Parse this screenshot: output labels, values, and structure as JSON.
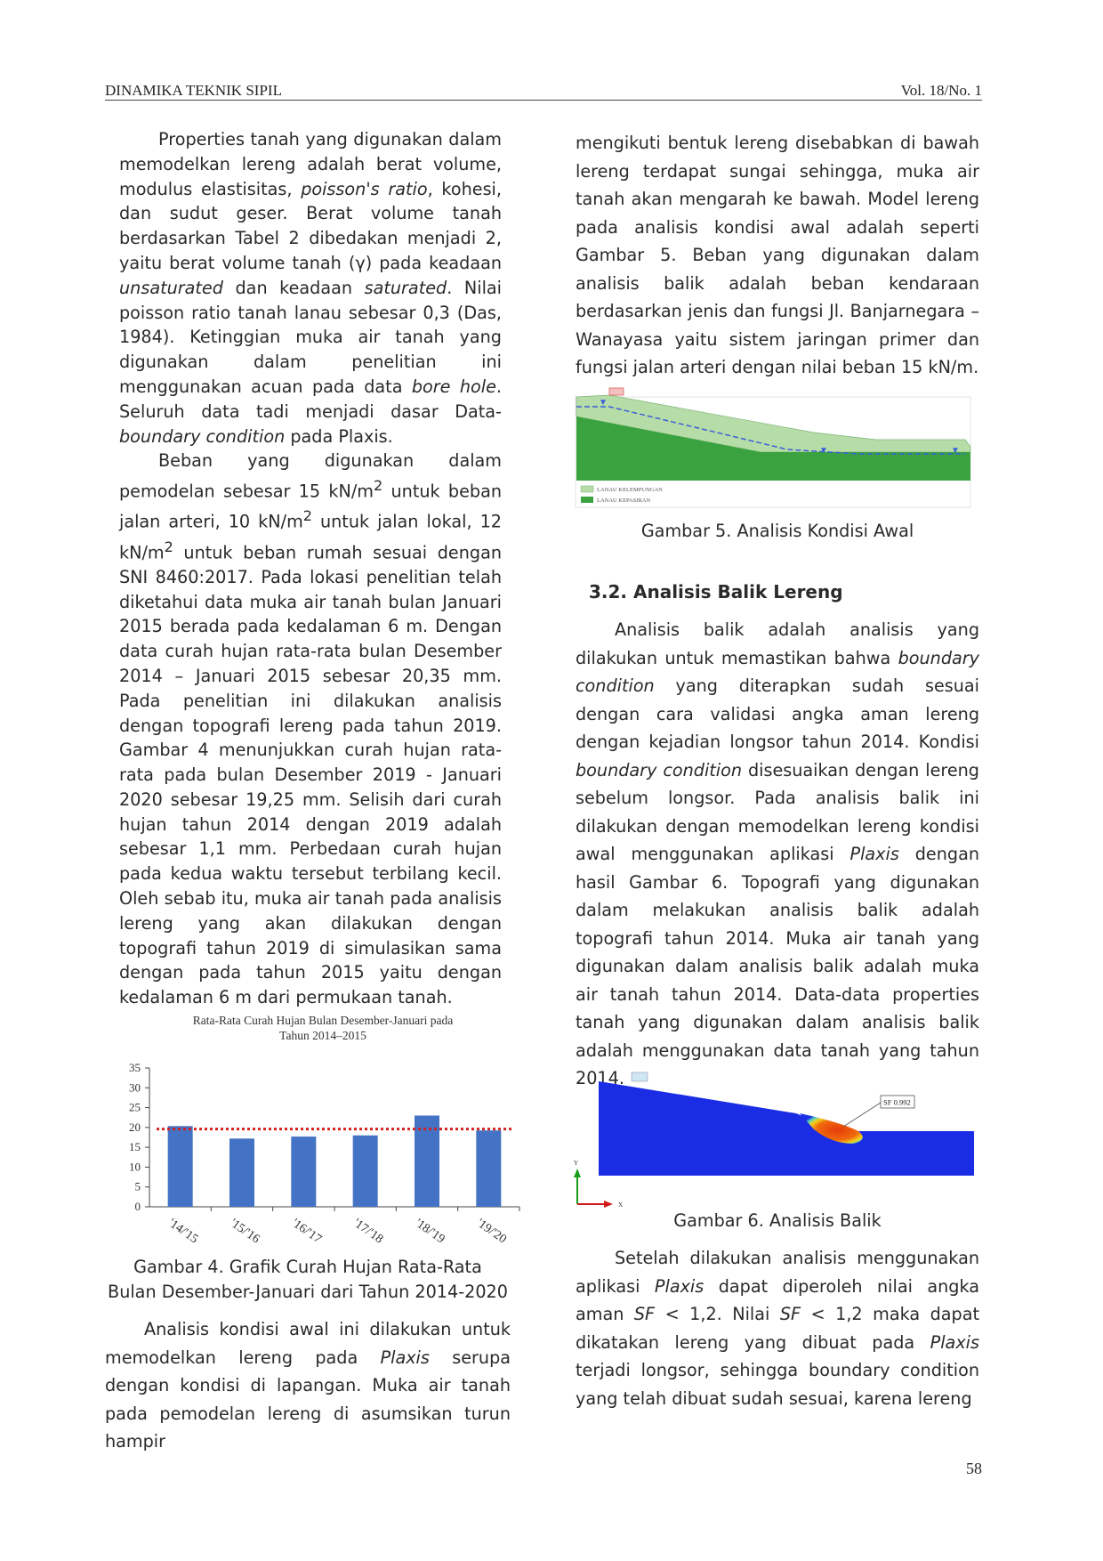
{
  "header": {
    "journal": "DINAMIKA TEKNIK SIPIL",
    "volume": "Vol. 18/No. 1"
  },
  "left_column": {
    "p1": [
      "Properties tanah yang digunakan dalam memodelkan lereng adalah berat volume, modulus elastisitas, ",
      "poisson's ratio",
      ", kohesi, dan sudut geser. Berat volume tanah berdasarkan Tabel 2 dibedakan menjadi 2, yaitu berat volume tanah (γ) pada keadaan ",
      "unsaturated",
      " dan keadaan ",
      "saturated",
      ". Nilai poisson ratio tanah lanau sebesar 0,3 (Das, 1984). Ketinggian muka air tanah yang digunakan dalam penelitian ini menggunakan acuan pada data ",
      "bore hole",
      ". Seluruh data tadi menjadi dasar Data-",
      "boundary condition",
      " pada Plaxis."
    ],
    "p2": [
      "Beban yang digunakan dalam pemodelan sebesar 15 kN/m",
      "2",
      " untuk beban jalan arteri, 10 kN/m",
      "2",
      " untuk jalan lokal, 12 kN/m",
      "2",
      " untuk beban rumah sesuai dengan SNI 8460:2017. Pada lokasi penelitian telah diketahui data muka air tanah bulan Januari 2015 berada pada kedalaman 6 m. Dengan data curah hujan rata-rata bulan Desember 2014 – Januari 2015 sebesar 20,35 mm. Pada penelitian ini dilakukan analisis dengan topografi lereng pada tahun 2019. Gambar 4 menunjukkan curah hujan rata-rata pada bulan Desember 2019 - Januari 2020 sebesar 19,25 mm. Selisih dari curah hujan tahun 2014 dengan 2019 adalah sebesar 1,1 mm. Perbedaan curah hujan pada kedua waktu tersebut terbilang kecil. Oleh sebab itu, muka air tanah pada analisis lereng yang akan dilakukan dengan topografi tahun 2019 di simulasikan sama dengan pada tahun 2015 yaitu dengan kedalaman 6 m dari permukaan tanah."
    ],
    "fig4_caption": [
      "Gambar 4. Grafik Curah Hujan Rata-Rata",
      "Bulan Desember-Januari dari Tahun 2014-2020"
    ],
    "p3": [
      "Analisis kondisi awal ini dilakukan untuk memodelkan lereng pada ",
      "Plaxis",
      " serupa dengan kondisi di lapangan. Muka air tanah pada pemodelan lereng di asumsikan turun hampir"
    ]
  },
  "right_column": {
    "p1": "mengikuti bentuk lereng disebabkan di bawah lereng terdapat sungai sehingga, muka air tanah akan mengarah ke bawah. Model lereng pada analisis kondisi awal adalah seperti Gambar 5. Beban yang digunakan dalam analisis balik adalah beban kendaraan berdasarkan jenis dan fungsi Jl. Banjarnegara – Wanayasa yaitu sistem jaringan primer dan fungsi jalan arteri dengan nilai beban 15 kN/m.",
    "fig5_legend": [
      "LANAU KELEMPUNGAN",
      "LANAU KEPASIRAN"
    ],
    "fig5_caption": "Gambar 5. Analisis Kondisi Awal",
    "section_title": "3.2.  Analisis Balik Lereng",
    "p2": [
      "Analisis balik adalah analisis yang dilakukan untuk memastikan bahwa ",
      "boundary condition",
      " yang diterapkan sudah sesuai dengan cara validasi angka aman lereng dengan kejadian longsor tahun 2014. Kondisi ",
      "boundary condition",
      " disesuaikan dengan lereng sebelum longsor. Pada analisis balik ini dilakukan dengan memodelkan lereng kondisi awal menggunakan aplikasi ",
      "Plaxis",
      " dengan hasil Gambar 6. Topografi yang digunakan dalam melakukan analisis balik adalah topografi tahun 2014. Muka air tanah yang digunakan dalam analisis balik adalah muka air tanah tahun 2014. Data-data properties tanah yang digunakan dalam analisis balik adalah menggunakan data tanah yang tahun 2014."
    ],
    "fig6_sf_label": "SF 0.992",
    "fig6_axis_y": "Y",
    "fig6_axis_x": "X",
    "fig6_caption": "Gambar 6. Analisis Balik",
    "p3": [
      "Setelah dilakukan analisis menggunakan aplikasi ",
      "Plaxis",
      " dapat diperoleh nilai angka aman ",
      "SF",
      " < 1,2. Nilai ",
      "SF",
      " < 1,2 maka dapat dikatakan lereng yang dibuat pada ",
      "Plaxis",
      " terjadi longsor, sehingga boundary condition yang telah dibuat sudah sesuai, karena lereng"
    ]
  },
  "page_number": "58",
  "chart_data": {
    "type": "bar",
    "title": "Rata-Rata Curah Hujan Bulan Desember-Januari pada Tahun 2014–2015",
    "categories": [
      "'14/'15",
      "'15/'16",
      "'16/'17",
      "'17/'18",
      "'18/'19",
      "'19/'20"
    ],
    "values": [
      20.35,
      17.2,
      17.7,
      18.0,
      23.0,
      19.25
    ],
    "reference_line": 19.6,
    "ylim": [
      0,
      35
    ],
    "yticks": [
      0,
      5,
      10,
      15,
      20,
      25,
      30,
      35
    ],
    "bar_color": "#4472c4",
    "reference_color": "#d42020",
    "grid": false
  }
}
